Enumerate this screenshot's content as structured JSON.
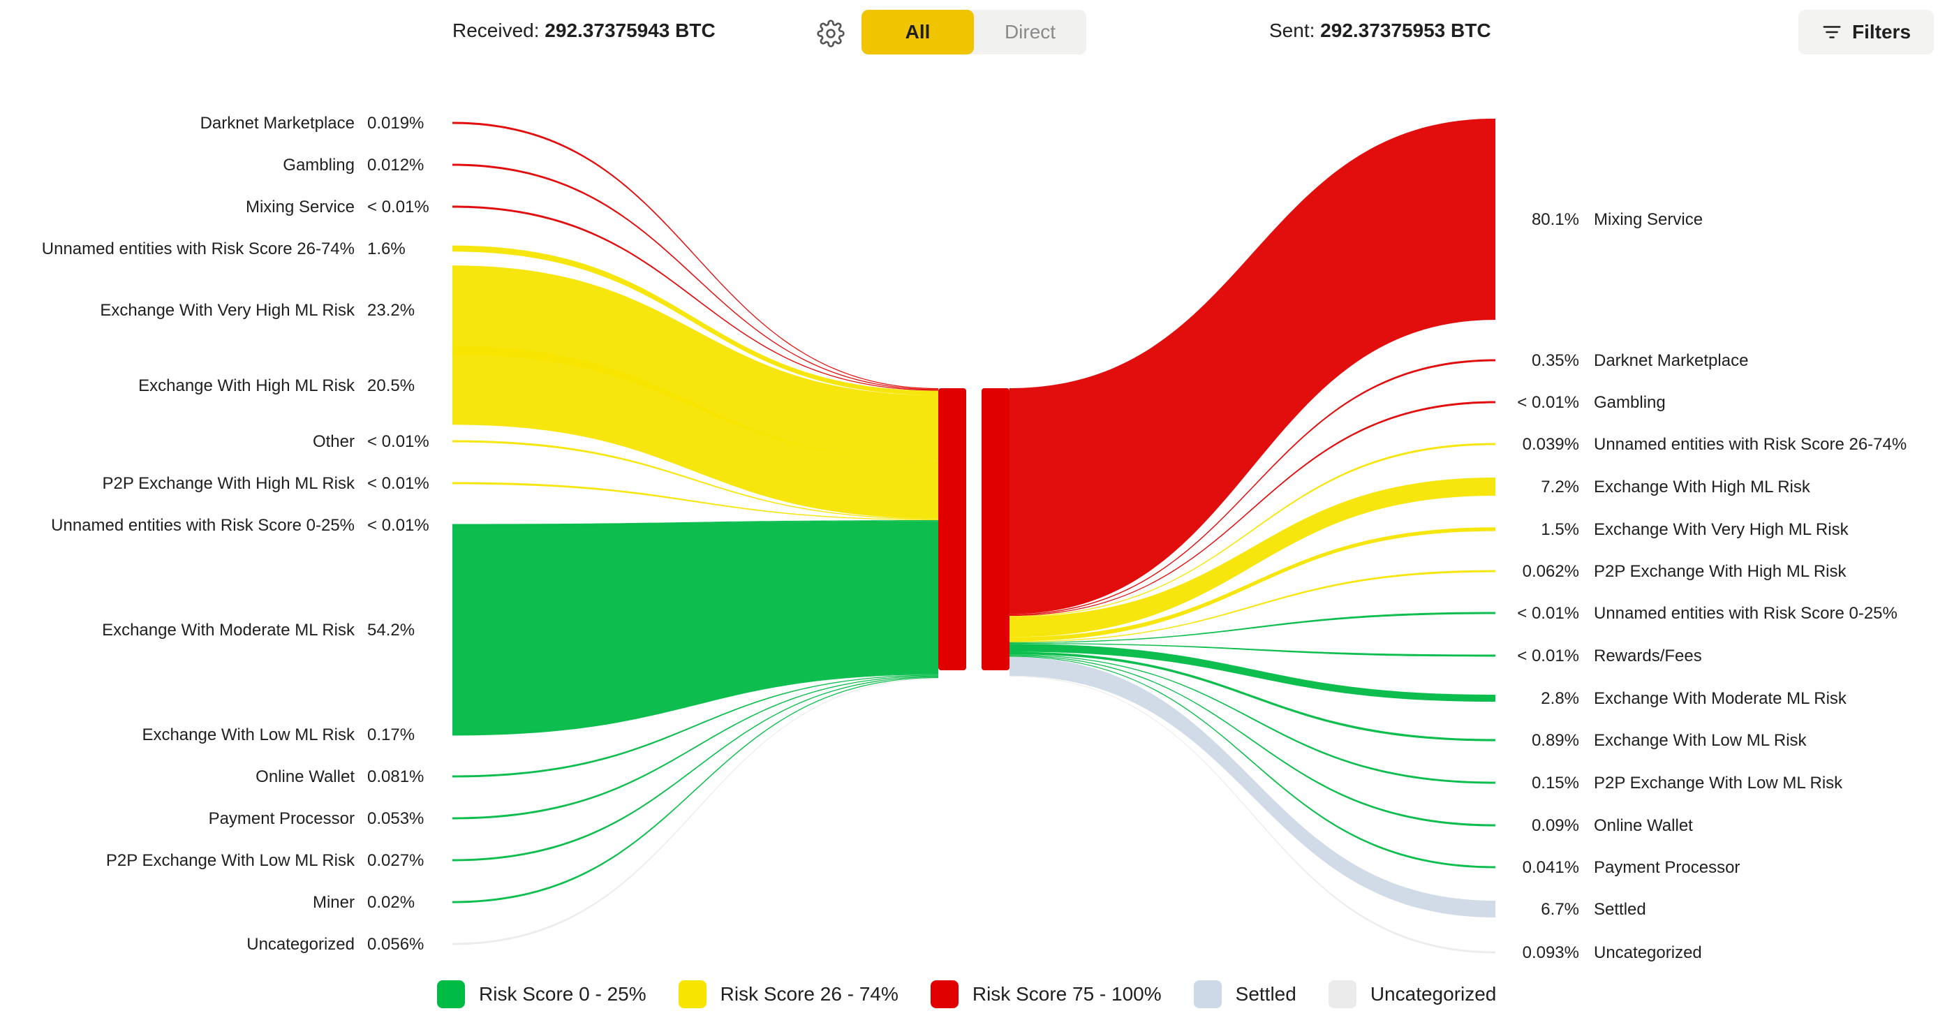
{
  "header": {
    "received_label": "Received:",
    "received_value": "292.37375943 BTC",
    "sent_label": "Sent:",
    "sent_value": "292.37375953 BTC",
    "toggle": {
      "all_label": "All",
      "direct_label": "Direct",
      "active": "All"
    },
    "filters_label": "Filters",
    "icons": {
      "settings": "gear-icon",
      "filters": "filter-lines-icon"
    }
  },
  "colors": {
    "low": "#00bb44",
    "medium": "#f7e500",
    "high": "#e00000",
    "settled": "#cdd9e6",
    "uncategorized": "#ebebeb"
  },
  "legend": [
    {
      "key": "low",
      "label": "Risk Score 0 - 25%"
    },
    {
      "key": "medium",
      "label": "Risk Score 26 - 74%"
    },
    {
      "key": "high",
      "label": "Risk Score 75 - 100%"
    },
    {
      "key": "settled",
      "label": "Settled"
    },
    {
      "key": "uncategorized",
      "label": "Uncategorized"
    }
  ],
  "chart_data": {
    "type": "sankey",
    "center_node": "address",
    "received": [
      {
        "name": "Darknet Marketplace",
        "pct_label": "0.019%",
        "value": 0.019,
        "risk": "high"
      },
      {
        "name": "Gambling",
        "pct_label": "0.012%",
        "value": 0.012,
        "risk": "high"
      },
      {
        "name": "Mixing Service",
        "pct_label": "< 0.01%",
        "value": 0.005,
        "risk": "high"
      },
      {
        "name": "Unnamed entities with Risk Score 26-74%",
        "pct_label": "1.6%",
        "value": 1.6,
        "risk": "medium"
      },
      {
        "name": "Exchange With Very High ML Risk",
        "pct_label": "23.2%",
        "value": 23.2,
        "risk": "medium"
      },
      {
        "name": "Exchange With High ML Risk",
        "pct_label": "20.5%",
        "value": 20.5,
        "risk": "medium"
      },
      {
        "name": "Other",
        "pct_label": "< 0.01%",
        "value": 0.005,
        "risk": "medium"
      },
      {
        "name": "P2P Exchange With High ML Risk",
        "pct_label": "< 0.01%",
        "value": 0.005,
        "risk": "medium"
      },
      {
        "name": "Unnamed entities with Risk Score 0-25%",
        "pct_label": "< 0.01%",
        "value": 0.005,
        "risk": "low"
      },
      {
        "name": "Exchange With Moderate ML Risk",
        "pct_label": "54.2%",
        "value": 54.2,
        "risk": "low"
      },
      {
        "name": "Exchange With Low ML Risk",
        "pct_label": "0.17%",
        "value": 0.17,
        "risk": "low"
      },
      {
        "name": "Online Wallet",
        "pct_label": "0.081%",
        "value": 0.081,
        "risk": "low"
      },
      {
        "name": "Payment Processor",
        "pct_label": "0.053%",
        "value": 0.053,
        "risk": "low"
      },
      {
        "name": "P2P Exchange With Low ML Risk",
        "pct_label": "0.027%",
        "value": 0.027,
        "risk": "low"
      },
      {
        "name": "Miner",
        "pct_label": "0.02%",
        "value": 0.02,
        "risk": "low"
      },
      {
        "name": "Uncategorized",
        "pct_label": "0.056%",
        "value": 0.056,
        "risk": "uncategorized"
      }
    ],
    "sent": [
      {
        "name": "Mixing Service",
        "pct_label": "80.1%",
        "value": 80.1,
        "risk": "high"
      },
      {
        "name": "Darknet Marketplace",
        "pct_label": "0.35%",
        "value": 0.35,
        "risk": "high"
      },
      {
        "name": "Gambling",
        "pct_label": "< 0.01%",
        "value": 0.005,
        "risk": "high"
      },
      {
        "name": "Unnamed entities with Risk Score 26-74%",
        "pct_label": "0.039%",
        "value": 0.039,
        "risk": "medium"
      },
      {
        "name": "Exchange With High ML Risk",
        "pct_label": "7.2%",
        "value": 7.2,
        "risk": "medium"
      },
      {
        "name": "Exchange With Very High ML Risk",
        "pct_label": "1.5%",
        "value": 1.5,
        "risk": "medium"
      },
      {
        "name": "P2P Exchange With High ML Risk",
        "pct_label": "0.062%",
        "value": 0.062,
        "risk": "medium"
      },
      {
        "name": "Unnamed entities with Risk Score 0-25%",
        "pct_label": "< 0.01%",
        "value": 0.005,
        "risk": "low"
      },
      {
        "name": "Rewards/Fees",
        "pct_label": "< 0.01%",
        "value": 0.005,
        "risk": "low"
      },
      {
        "name": "Exchange With Moderate ML Risk",
        "pct_label": "2.8%",
        "value": 2.8,
        "risk": "low"
      },
      {
        "name": "Exchange With Low ML Risk",
        "pct_label": "0.89%",
        "value": 0.89,
        "risk": "low"
      },
      {
        "name": "P2P Exchange With Low ML Risk",
        "pct_label": "0.15%",
        "value": 0.15,
        "risk": "low"
      },
      {
        "name": "Online Wallet",
        "pct_label": "0.09%",
        "value": 0.09,
        "risk": "low"
      },
      {
        "name": "Payment Processor",
        "pct_label": "0.041%",
        "value": 0.041,
        "risk": "low"
      },
      {
        "name": "Settled",
        "pct_label": "6.7%",
        "value": 6.7,
        "risk": "settled"
      },
      {
        "name": "Uncategorized",
        "pct_label": "0.093%",
        "value": 0.093,
        "risk": "uncategorized"
      }
    ]
  }
}
